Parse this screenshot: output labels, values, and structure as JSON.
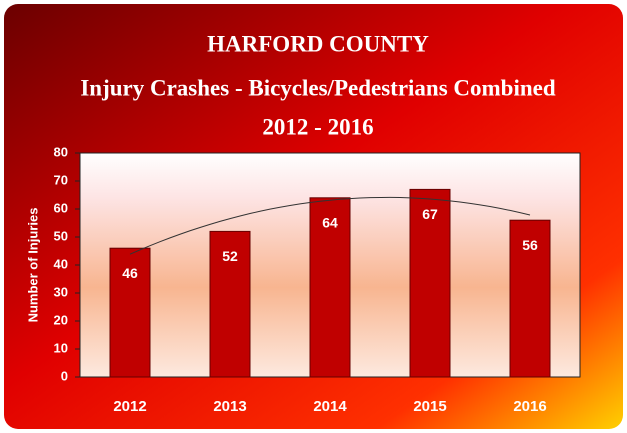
{
  "chart_data": {
    "type": "bar",
    "title": "HARFORD COUNTY",
    "subtitle": "Injury Crashes - Bicycles/Pedestrians Combined",
    "subtitle2": "2012 - 2016",
    "y_label": "Number of Injuries",
    "categories": [
      "2012",
      "2013",
      "2014",
      "2015",
      "2016"
    ],
    "values": [
      46,
      52,
      64,
      67,
      56
    ],
    "color": "#c00000",
    "ylim": [
      0,
      80
    ],
    "yticks": [
      0,
      10,
      20,
      30,
      40,
      50,
      60,
      70,
      80
    ],
    "grid": false,
    "trendline": true,
    "value_labels_shown": true
  }
}
